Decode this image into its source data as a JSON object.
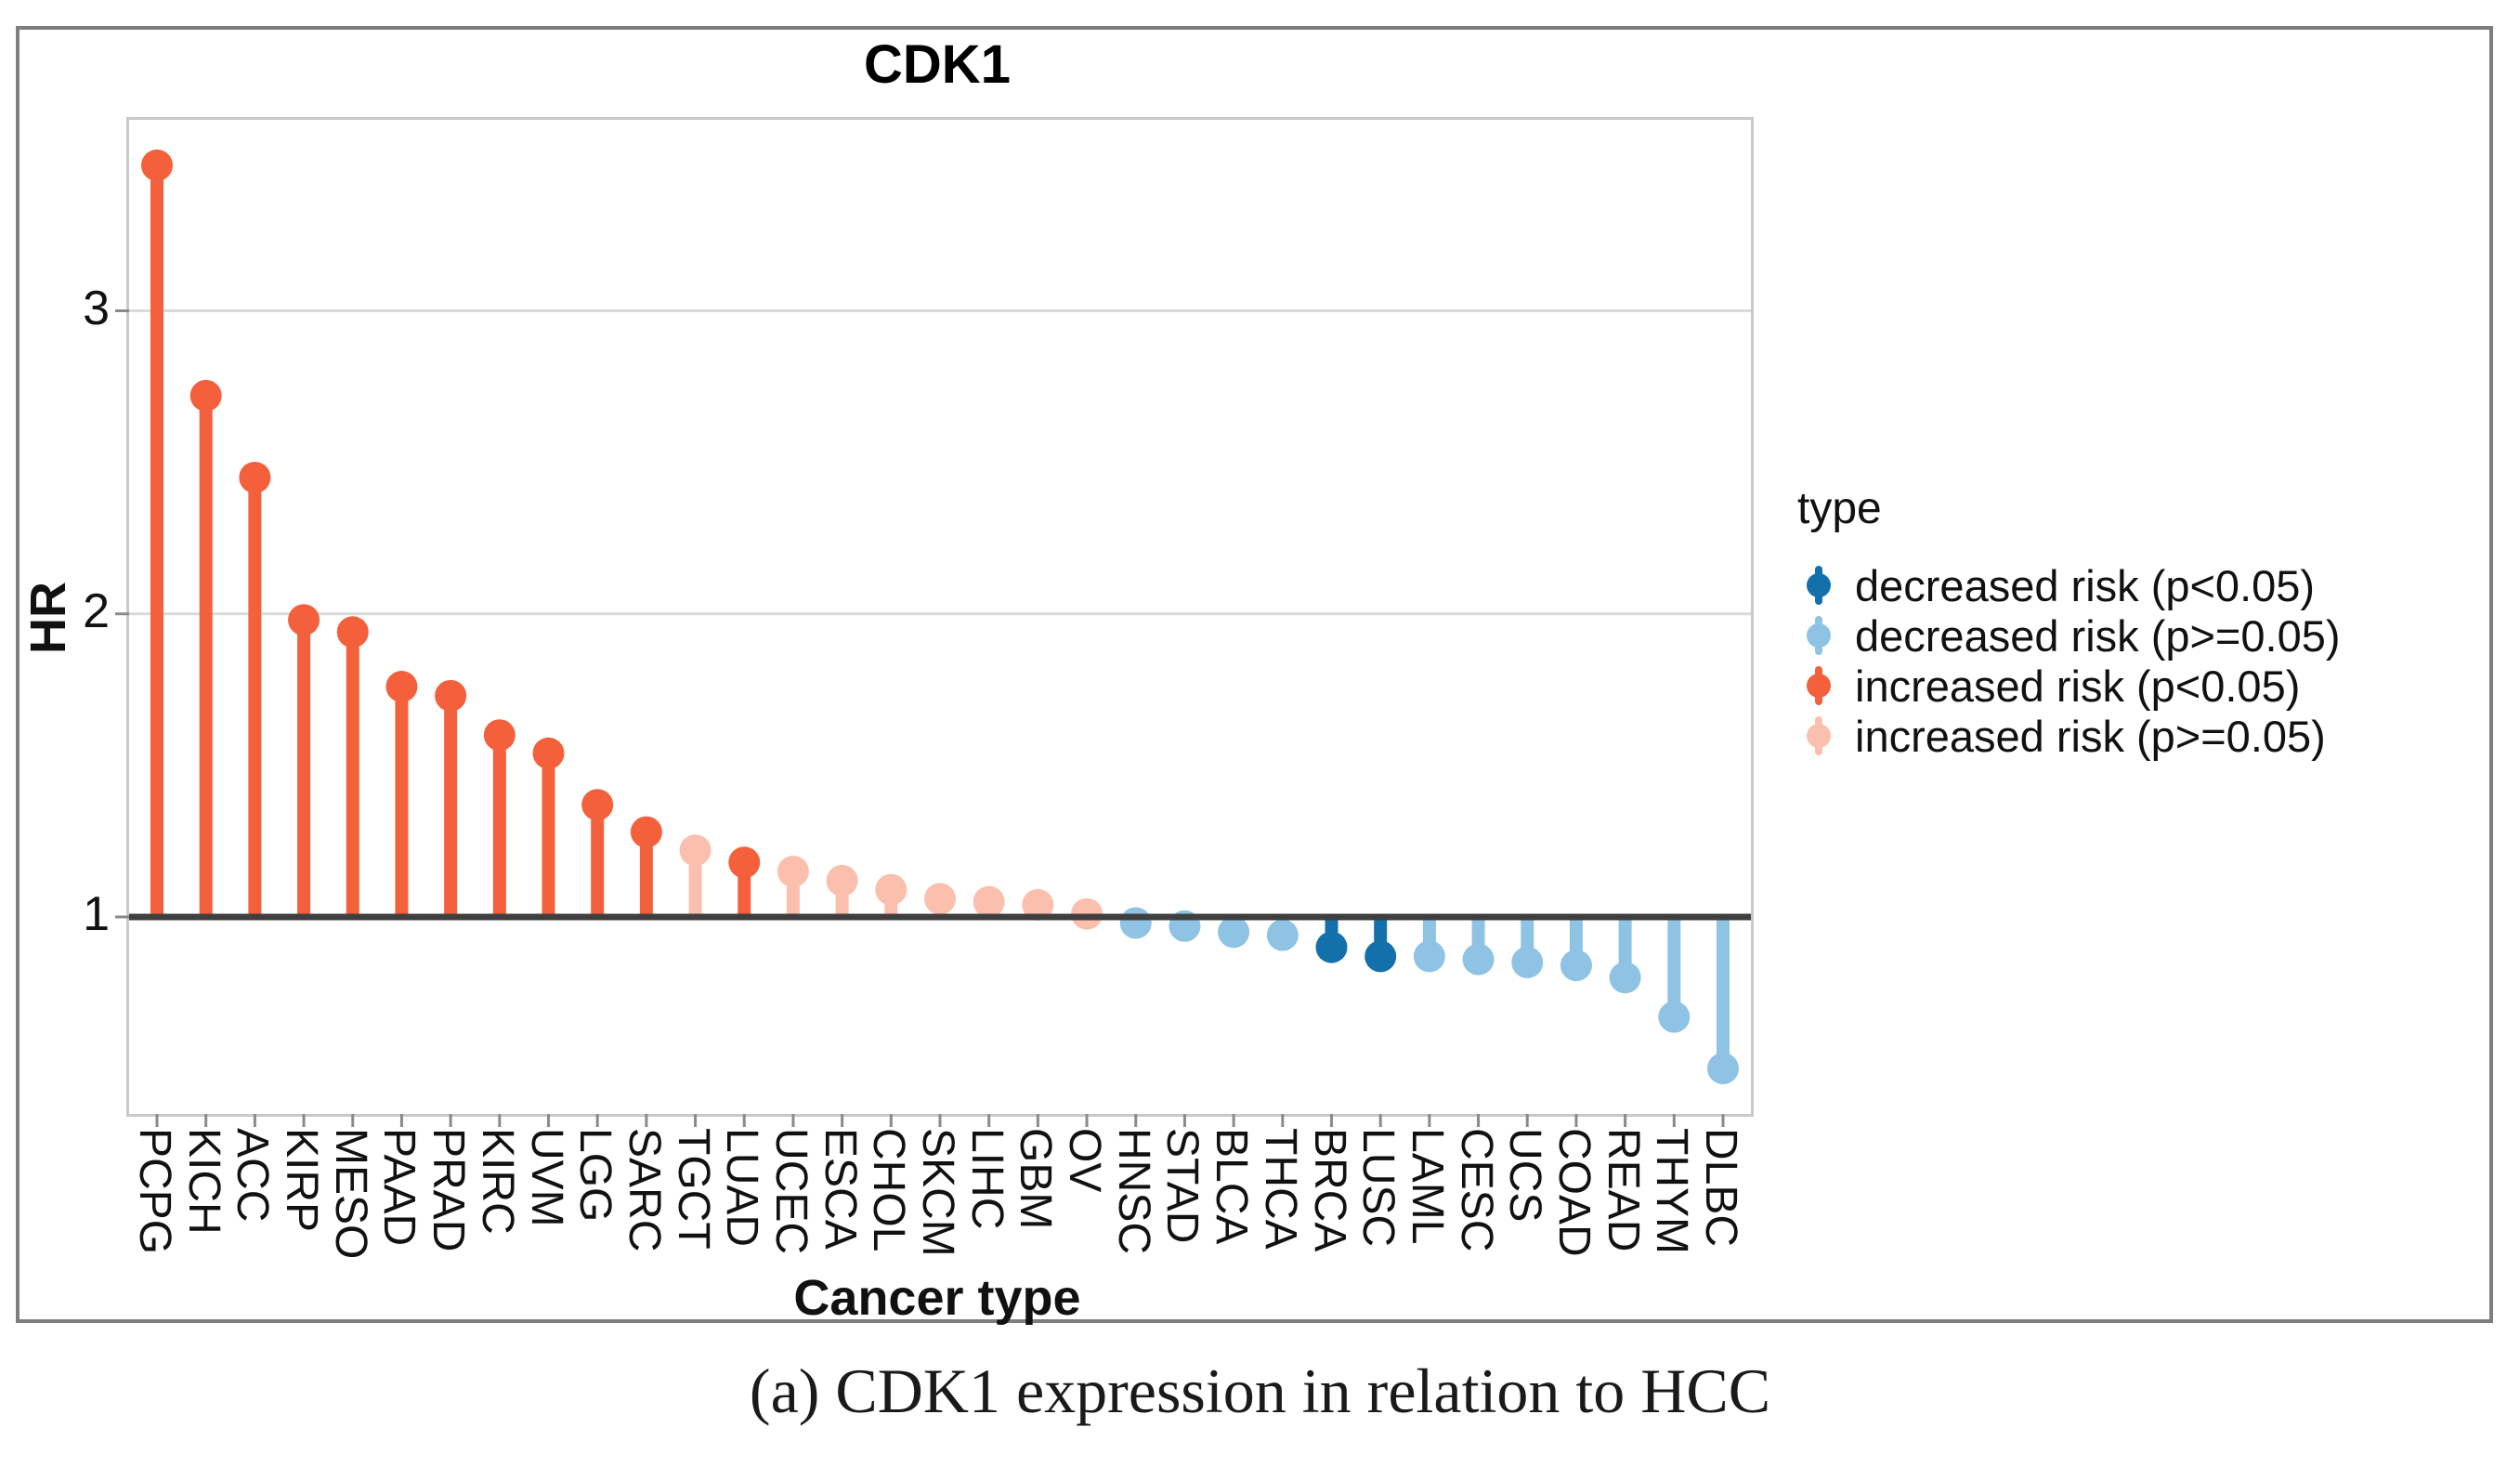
{
  "figure": {
    "caption": "(a) CDK1 expression in relation to HCC"
  },
  "chart_data": {
    "type": "bar",
    "variant": "lollipop",
    "title": "CDK1",
    "xlabel": "Cancer type",
    "ylabel": "HR",
    "ylim": [
      0.35,
      3.63
    ],
    "yticks": [
      3,
      2,
      1
    ],
    "baseline": 1,
    "grid": "horizontal",
    "legend": {
      "title": "type",
      "position": "right",
      "entries": [
        {
          "key": "decreased_sig",
          "label": "decreased risk (p<0.05)",
          "color": "#1470AA"
        },
        {
          "key": "decreased_ns",
          "label": "decreased risk (p>=0.05)",
          "color": "#8FC3E3"
        },
        {
          "key": "increased_sig",
          "label": "increased risk (p<0.05)",
          "color": "#F4603C"
        },
        {
          "key": "increased_ns",
          "label": "increased risk (p>=0.05)",
          "color": "#FBC0AD"
        }
      ]
    },
    "categories": [
      "PCPG",
      "KICH",
      "ACC",
      "KIRP",
      "MESO",
      "PAAD",
      "PRAD",
      "KIRC",
      "UVM",
      "LGG",
      "SARC",
      "TGCT",
      "LUAD",
      "UCEC",
      "ESCA",
      "CHOL",
      "SKCM",
      "LIHC",
      "GBM",
      "OV",
      "HNSC",
      "STAD",
      "BLCA",
      "THCA",
      "BRCA",
      "LUSC",
      "LAML",
      "CESC",
      "UCS",
      "COAD",
      "READ",
      "THYM",
      "DLBC"
    ],
    "values": [
      3.48,
      2.72,
      2.45,
      1.98,
      1.94,
      1.76,
      1.73,
      1.6,
      1.54,
      1.37,
      1.28,
      1.22,
      1.18,
      1.15,
      1.12,
      1.09,
      1.06,
      1.05,
      1.04,
      1.01,
      0.98,
      0.97,
      0.95,
      0.94,
      0.9,
      0.87,
      0.87,
      0.86,
      0.85,
      0.84,
      0.8,
      0.67,
      0.5
    ],
    "point_types": [
      "increased_sig",
      "increased_sig",
      "increased_sig",
      "increased_sig",
      "increased_sig",
      "increased_sig",
      "increased_sig",
      "increased_sig",
      "increased_sig",
      "increased_sig",
      "increased_sig",
      "increased_ns",
      "increased_sig",
      "increased_ns",
      "increased_ns",
      "increased_ns",
      "increased_ns",
      "increased_ns",
      "increased_ns",
      "increased_ns",
      "decreased_ns",
      "decreased_ns",
      "decreased_ns",
      "decreased_ns",
      "decreased_sig",
      "decreased_sig",
      "decreased_ns",
      "decreased_ns",
      "decreased_ns",
      "decreased_ns",
      "decreased_ns",
      "decreased_ns",
      "decreased_ns"
    ]
  },
  "style_colors": {
    "gridline": "#d9d9d9",
    "baseline": "#3f3f3f",
    "tick": "#8a8a8a",
    "panel_border": "#c9c9c9",
    "outer_border": "#7e7e7e"
  }
}
